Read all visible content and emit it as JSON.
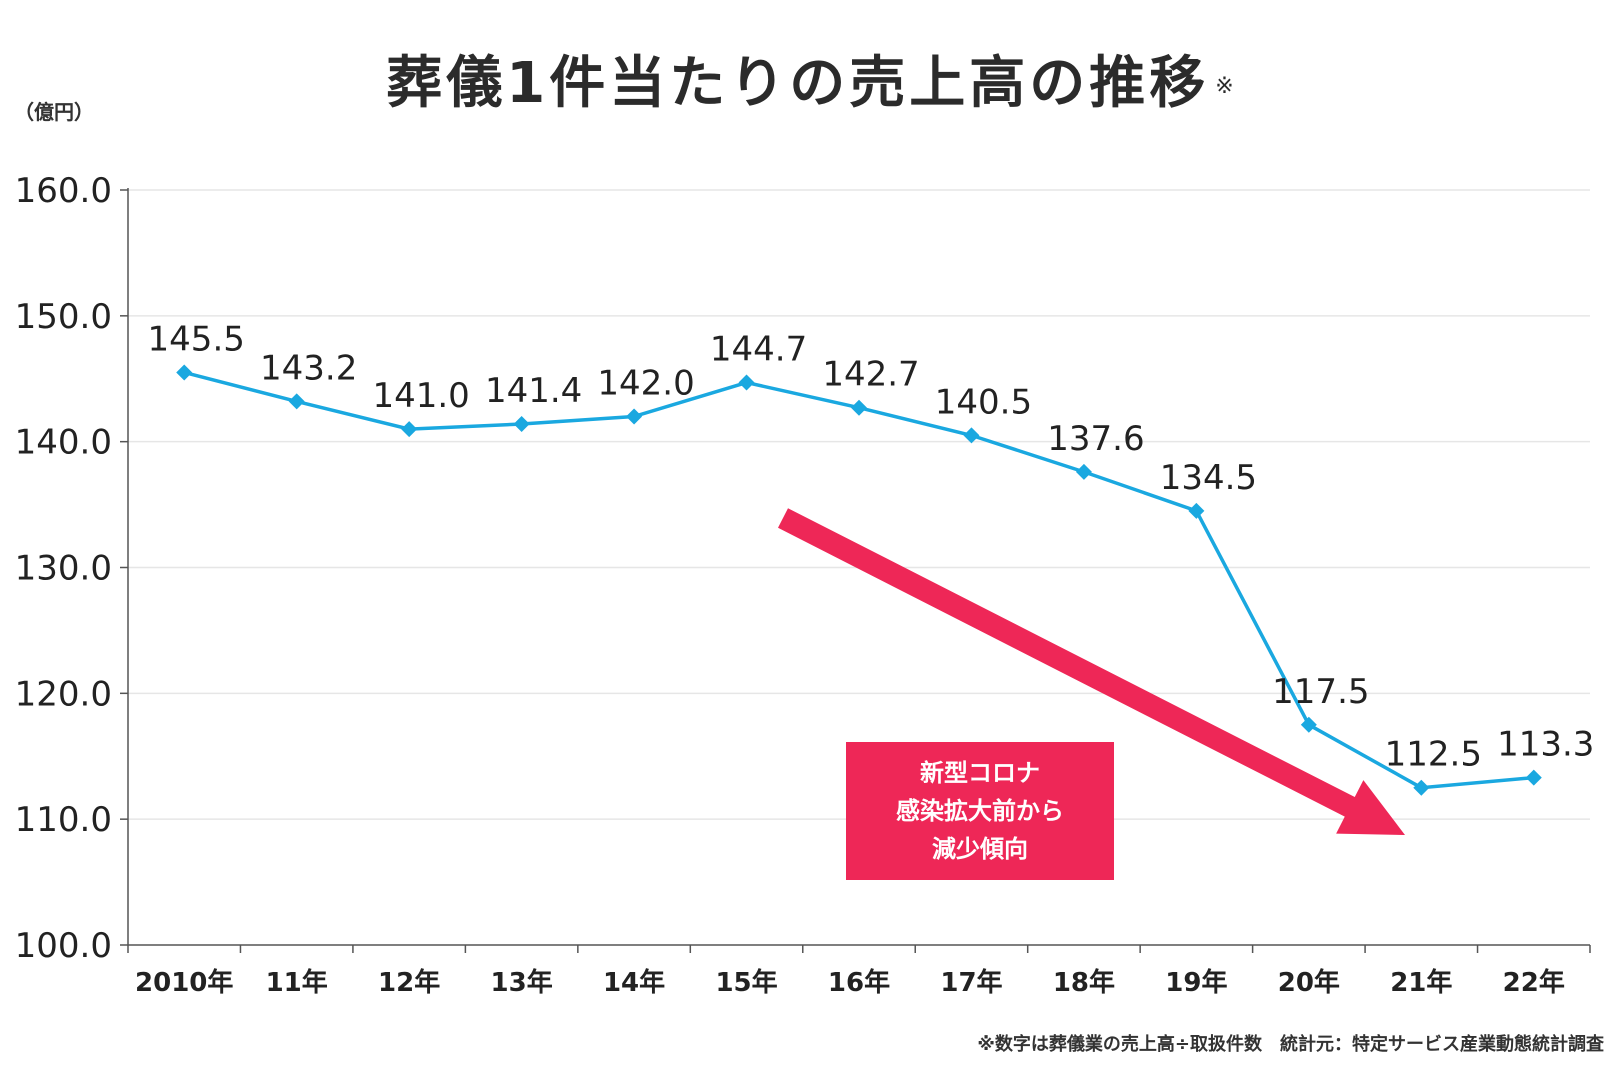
{
  "chart_data": {
    "type": "line",
    "title": "葬儀1件当たりの売上高の推移",
    "title_mark": "※",
    "ylabel": "（億円）",
    "categories": [
      "2010年",
      "11年",
      "12年",
      "13年",
      "14年",
      "15年",
      "16年",
      "17年",
      "18年",
      "19年",
      "20年",
      "21年",
      "22年"
    ],
    "values": [
      145.5,
      143.2,
      141.0,
      141.4,
      142.0,
      144.7,
      142.7,
      140.5,
      137.6,
      134.5,
      117.5,
      112.5,
      113.3
    ],
    "data_labels": [
      "145.5",
      "143.2",
      "141.0",
      "141.4",
      "142.0",
      "144.7",
      "142.7",
      "140.5",
      "137.6",
      "134.5",
      "117.5",
      "112.5",
      "113.3"
    ],
    "ylim": [
      100,
      160
    ],
    "yticks": [
      "100.0",
      "110.0",
      "120.0",
      "130.0",
      "140.0",
      "150.0",
      "160.0"
    ],
    "grid": true,
    "line_color": "#1aa8e0",
    "annotation": {
      "lines": [
        "新型コロナ",
        "感染拡大前から",
        "減少傾向"
      ],
      "color": "#ee2757"
    },
    "footnote": "※数字は葬儀業の売上高÷取扱件数　統計元：特定サービス産業動態統計調査"
  }
}
